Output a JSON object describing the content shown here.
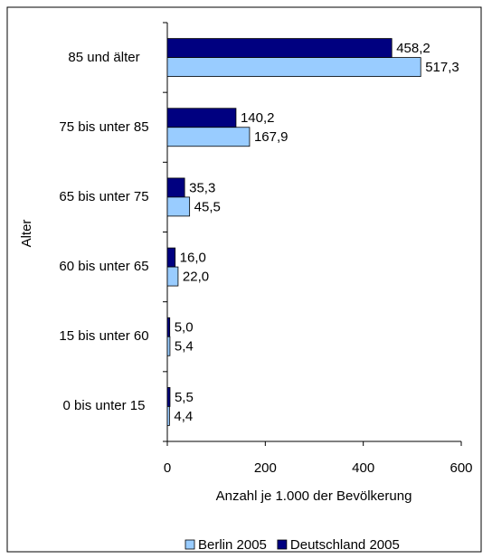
{
  "chart_data": {
    "type": "bar",
    "orientation": "horizontal",
    "y_label": "Alter",
    "x_label": "Anzahl je 1.000 der Bevölkerung",
    "categories": [
      "85 und älter",
      "75 bis unter 85",
      "65 bis unter 75",
      "60 bis unter 65",
      "15 bis unter 60",
      "0 bis unter 15"
    ],
    "series": [
      {
        "name": "Berlin 2005",
        "color": "#99ccff",
        "values": [
          517.3,
          167.9,
          45.5,
          22.0,
          5.4,
          4.4
        ],
        "value_labels": [
          "517,3",
          "167,9",
          "45,5",
          "22,0",
          "5,4",
          "4,4"
        ]
      },
      {
        "name": "Deutschland 2005",
        "color": "#000080",
        "values": [
          458.2,
          140.2,
          35.3,
          16.0,
          5.0,
          5.5
        ],
        "value_labels": [
          "458,2",
          "140,2",
          "35,3",
          "16,0",
          "5,0",
          "5,5"
        ]
      }
    ],
    "xlim": [
      0,
      600
    ],
    "xticks": [
      0,
      200,
      400,
      600
    ]
  }
}
